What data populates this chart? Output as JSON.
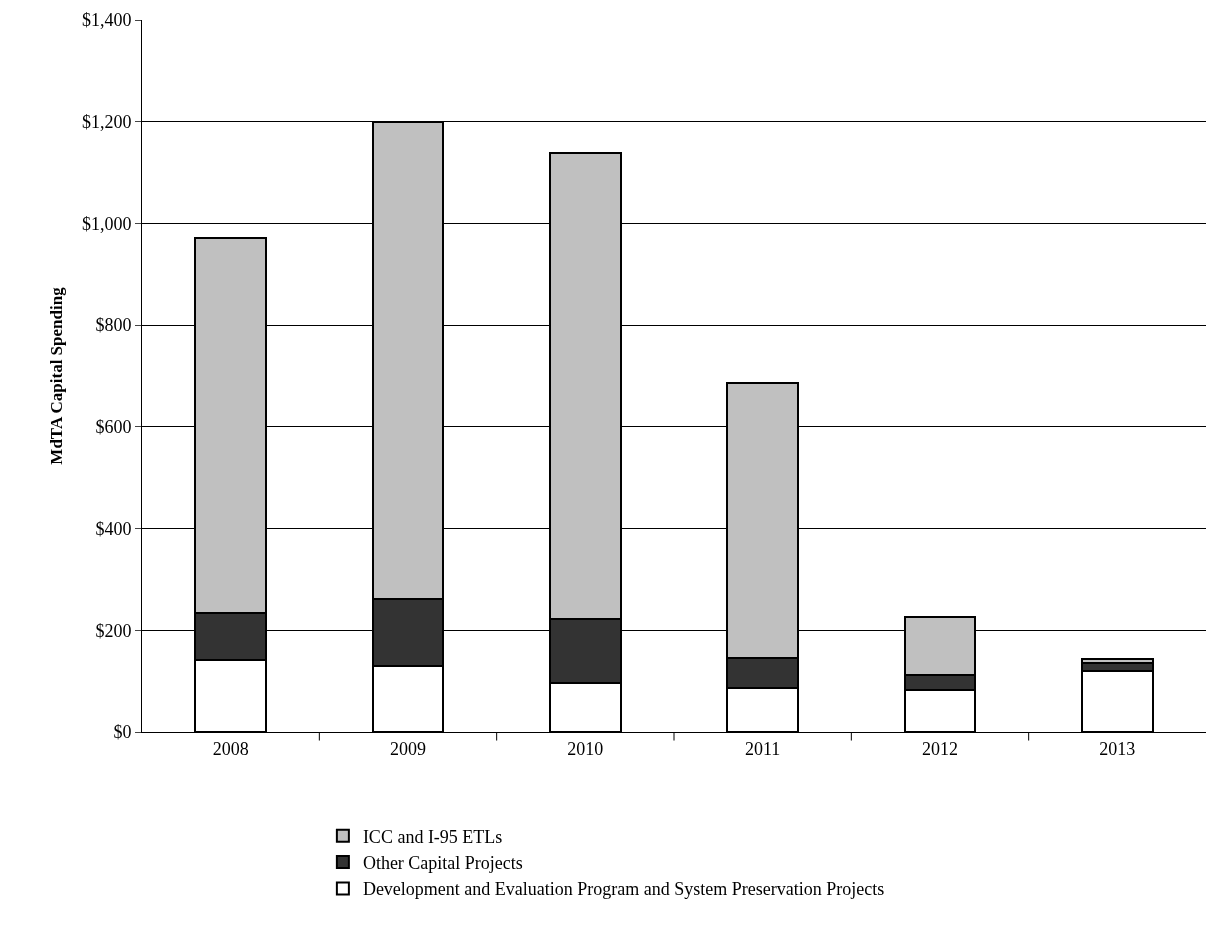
{
  "chart_data": {
    "type": "bar",
    "stacked": true,
    "ylabel": "MdTA Capital Spending",
    "categories": [
      "2008",
      "2009",
      "2010",
      "2011",
      "2012",
      "2013"
    ],
    "series": [
      {
        "name": "Development and Evaluation Program and System Preservation Projects",
        "color": "#ffffff",
        "values": [
          142,
          130,
          97,
          87,
          83,
          120
        ]
      },
      {
        "name": "Other Capital Projects",
        "color": "#333333",
        "values": [
          92,
          131,
          126,
          59,
          29,
          16
        ]
      },
      {
        "name": "ICC and I-95 ETLs",
        "color": "#c0c0c0",
        "values": [
          737,
          939,
          916,
          540,
          115,
          8
        ]
      }
    ],
    "ylim": [
      0,
      1400
    ],
    "yticks": [
      {
        "value": 0,
        "label": "$0"
      },
      {
        "value": 200,
        "label": "$200"
      },
      {
        "value": 400,
        "label": "$400"
      },
      {
        "value": 600,
        "label": "$600"
      },
      {
        "value": 800,
        "label": "$800"
      },
      {
        "value": 1000,
        "label": "$1,000"
      },
      {
        "value": 1200,
        "label": "$1,200"
      },
      {
        "value": 1400,
        "label": "$1,400"
      }
    ],
    "grid": "y",
    "legend": "bottom"
  }
}
